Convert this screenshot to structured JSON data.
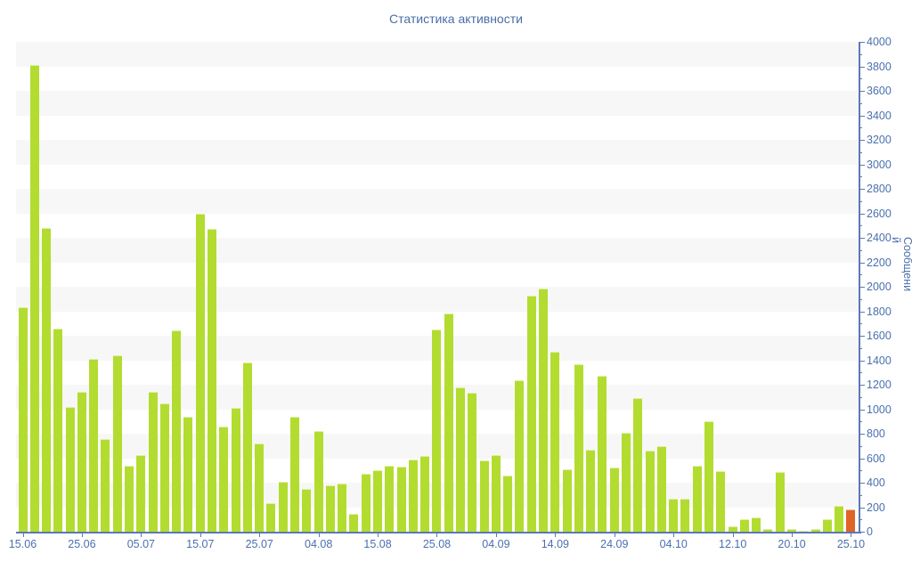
{
  "title": "Статистика активности",
  "chart_data": {
    "type": "bar",
    "title": "Статистика активности",
    "xlabel": "",
    "ylabel": "Сообщений",
    "ylim": [
      0,
      4000
    ],
    "ytick_step": 200,
    "ytick_minor_step": 100,
    "legend": "none",
    "grid": "alternating horizontal bands every 200 units",
    "x_tick_labels": [
      "15.06",
      "25.06",
      "05.07",
      "15.07",
      "25.07",
      "04.08",
      "15.08",
      "25.08",
      "04.09",
      "14.09",
      "24.09",
      "04.10",
      "12.10",
      "20.10",
      "25.10"
    ],
    "x_label_every_n_bars": 5,
    "bar_count": 71,
    "values": [
      1830,
      3810,
      2480,
      1660,
      1020,
      1140,
      1410,
      760,
      1440,
      535,
      625,
      1145,
      1045,
      1645,
      935,
      2600,
      2470,
      855,
      1010,
      1380,
      720,
      230,
      410,
      935,
      350,
      825,
      375,
      390,
      145,
      475,
      500,
      540,
      530,
      590,
      615,
      1650,
      1785,
      1180,
      1135,
      585,
      625,
      460,
      1240,
      1930,
      1985,
      1470,
      510,
      1370,
      670,
      1270,
      525,
      805,
      1090,
      660,
      700,
      270,
      270,
      540,
      905,
      495,
      45,
      105,
      120,
      20,
      485,
      25,
      10,
      20,
      100,
      210,
      185
    ],
    "highlight_index": 70,
    "colors": {
      "bar": "#b3dc30",
      "bar_highlight": "#de6428",
      "axis": "#5b79b5",
      "tick_text": "#4a70ad",
      "title_text": "#4a6da7",
      "band": "#f7f7f7",
      "background": "#ffffff"
    }
  }
}
